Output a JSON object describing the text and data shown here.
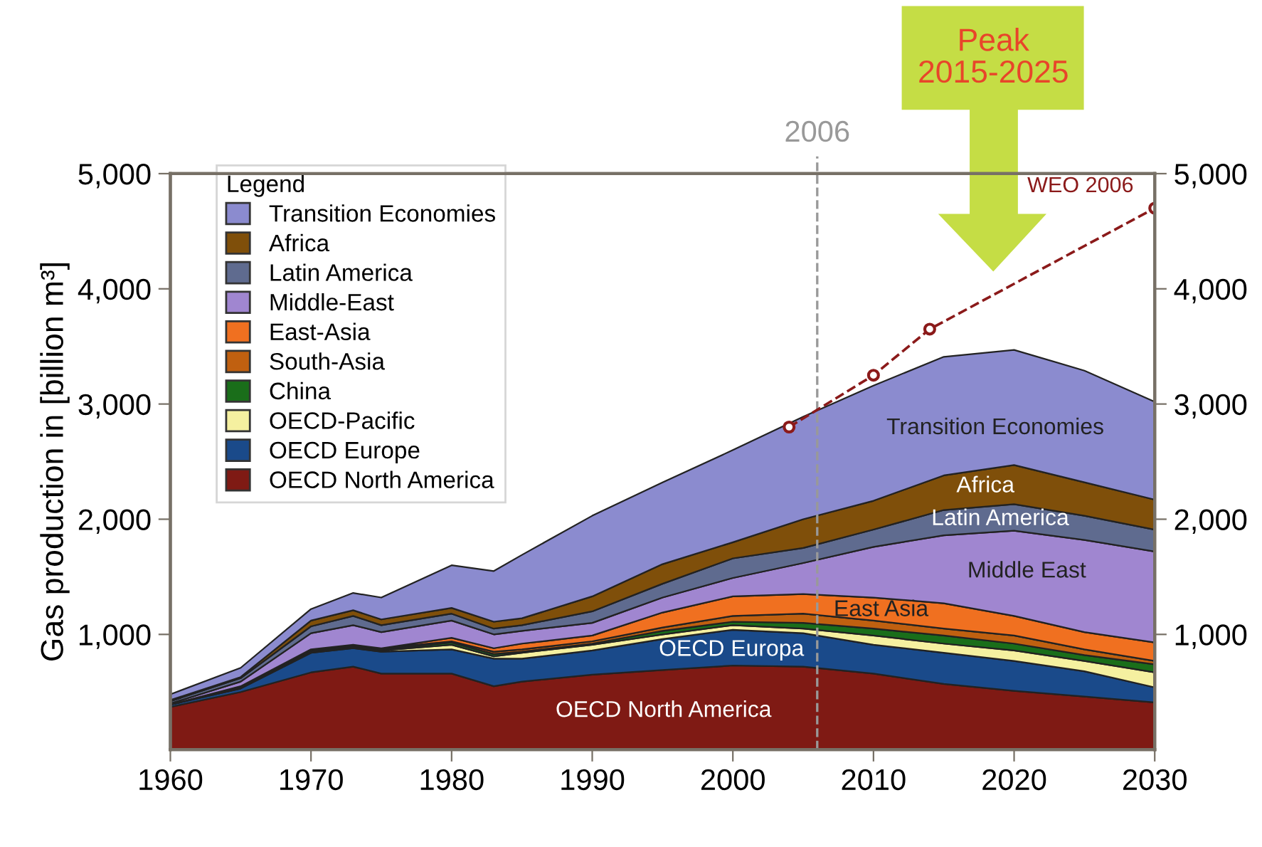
{
  "chart_data": {
    "type": "area",
    "stacked": true,
    "ylabel": "Gas production in [billion m³]",
    "legend_title": "Legend",
    "legend": "top left",
    "grid": false,
    "x": [
      1960,
      1965,
      1970,
      1973,
      1975,
      1980,
      1983,
      1985,
      1990,
      1995,
      2000,
      2005,
      2010,
      2015,
      2020,
      2025,
      2030
    ],
    "xlim": [
      1960,
      2030
    ],
    "xticks": [
      1960,
      1970,
      1980,
      1990,
      2000,
      2010,
      2020,
      2030
    ],
    "ylim": [
      0,
      5000
    ],
    "yticks": [
      {
        "value": 1000,
        "label": "1,000"
      },
      {
        "value": 2000,
        "label": "2,000"
      },
      {
        "value": 3000,
        "label": "3,000"
      },
      {
        "value": 4000,
        "label": "4,000"
      },
      {
        "value": 5000,
        "label": "5,000"
      }
    ],
    "y2lim": [
      0,
      5000
    ],
    "y2ticks": [
      {
        "value": 1000,
        "label": "1,000"
      },
      {
        "value": 2000,
        "label": "2,000"
      },
      {
        "value": 3000,
        "label": "3,000"
      },
      {
        "value": 4000,
        "label": "4,000"
      },
      {
        "value": 5000,
        "label": "5,000"
      }
    ],
    "series": [
      {
        "name": "OECD North America",
        "color": "#7f1a14",
        "values": [
          370,
          500,
          670,
          720,
          660,
          660,
          550,
          590,
          650,
          690,
          730,
          720,
          660,
          570,
          510,
          460,
          410
        ]
      },
      {
        "name": "OECD Europe",
        "color": "#1a4a8a",
        "values": [
          20,
          30,
          170,
          160,
          190,
          210,
          240,
          200,
          210,
          270,
          310,
          290,
          250,
          270,
          260,
          220,
          130
        ]
      },
      {
        "name": "OECD-Pacific",
        "color": "#f5f0a0",
        "values": [
          0,
          10,
          10,
          10,
          10,
          40,
          20,
          50,
          50,
          40,
          40,
          40,
          80,
          80,
          90,
          90,
          130
        ]
      },
      {
        "name": "China",
        "color": "#1a6e1a",
        "values": [
          0,
          0,
          10,
          10,
          10,
          20,
          20,
          10,
          10,
          30,
          30,
          50,
          60,
          70,
          60,
          50,
          70
        ]
      },
      {
        "name": "South-Asia",
        "color": "#c06010",
        "values": [
          0,
          0,
          10,
          0,
          10,
          10,
          20,
          20,
          20,
          30,
          50,
          80,
          70,
          60,
          70,
          50,
          30
        ]
      },
      {
        "name": "East-Asia",
        "color": "#f07020",
        "values": [
          0,
          10,
          0,
          10,
          0,
          30,
          30,
          50,
          50,
          130,
          170,
          170,
          200,
          220,
          170,
          150,
          160
        ]
      },
      {
        "name": "Middle-East",
        "color": "#a086d0",
        "values": [
          10,
          40,
          140,
          170,
          140,
          150,
          120,
          110,
          110,
          130,
          160,
          270,
          440,
          590,
          740,
          800,
          790
        ]
      },
      {
        "name": "Latin America",
        "color": "#5f6b8f",
        "values": [
          20,
          30,
          60,
          80,
          60,
          60,
          50,
          50,
          100,
          120,
          170,
          130,
          150,
          220,
          230,
          210,
          190
        ]
      },
      {
        "name": "Africa",
        "color": "#7f4f0a",
        "values": [
          10,
          10,
          50,
          50,
          50,
          50,
          60,
          60,
          130,
          170,
          140,
          250,
          250,
          300,
          340,
          290,
          260
        ]
      },
      {
        "name": "Transition Economies",
        "color": "#8b8bcf",
        "values": [
          50,
          80,
          100,
          150,
          190,
          370,
          440,
          550,
          700,
          710,
          800,
          890,
          1000,
          1030,
          1000,
          970,
          850
        ]
      },
      {
        "name": "WEO 2006",
        "type": "line",
        "color": "#8b1a1a",
        "marker": "circle",
        "line_style": "dashed",
        "x": [
          2004,
          2010,
          2014,
          2030
        ],
        "values": [
          2800,
          3250,
          3650,
          4700
        ]
      }
    ],
    "ref_lines": [
      {
        "axis": "x",
        "value": 2006,
        "label": "2006",
        "color": "#999999",
        "line_style": "dashed"
      }
    ],
    "annotations": [
      "Peak\n2015-2025",
      "Transition Economies",
      "Africa",
      "Latin America",
      "Middle East",
      "East Asia",
      "OECD Europa",
      "OECD North America"
    ]
  }
}
